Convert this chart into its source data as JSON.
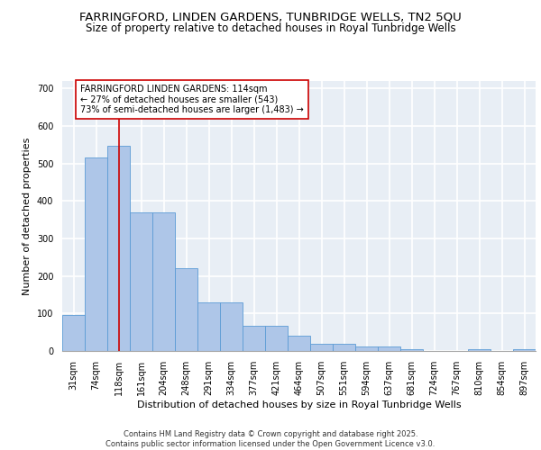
{
  "title1": "FARRINGFORD, LINDEN GARDENS, TUNBRIDGE WELLS, TN2 5QU",
  "title2": "Size of property relative to detached houses in Royal Tunbridge Wells",
  "xlabel": "Distribution of detached houses by size in Royal Tunbridge Wells",
  "ylabel": "Number of detached properties",
  "categories": [
    "31sqm",
    "74sqm",
    "118sqm",
    "161sqm",
    "204sqm",
    "248sqm",
    "291sqm",
    "334sqm",
    "377sqm",
    "421sqm",
    "464sqm",
    "507sqm",
    "551sqm",
    "594sqm",
    "637sqm",
    "681sqm",
    "724sqm",
    "767sqm",
    "810sqm",
    "854sqm",
    "897sqm"
  ],
  "values": [
    97,
    515,
    548,
    370,
    370,
    222,
    130,
    130,
    67,
    67,
    42,
    20,
    20,
    12,
    12,
    5,
    0,
    0,
    5,
    0,
    5
  ],
  "bar_color": "#aec6e8",
  "bar_edge_color": "#5b9bd5",
  "vline_x": 2,
  "vline_color": "#cc0000",
  "annotation_text": "FARRINGFORD LINDEN GARDENS: 114sqm\n← 27% of detached houses are smaller (543)\n73% of semi-detached houses are larger (1,483) →",
  "annotation_box_color": "#ffffff",
  "annotation_box_edgecolor": "#cc0000",
  "ylim": [
    0,
    720
  ],
  "yticks": [
    0,
    100,
    200,
    300,
    400,
    500,
    600,
    700
  ],
  "background_color": "#e8eef5",
  "grid_color": "#ffffff",
  "footer_text": "Contains HM Land Registry data © Crown copyright and database right 2025.\nContains public sector information licensed under the Open Government Licence v3.0.",
  "title1_fontsize": 9.5,
  "title2_fontsize": 8.5,
  "xlabel_fontsize": 8,
  "ylabel_fontsize": 8,
  "tick_fontsize": 7,
  "annotation_fontsize": 7,
  "footer_fontsize": 6
}
